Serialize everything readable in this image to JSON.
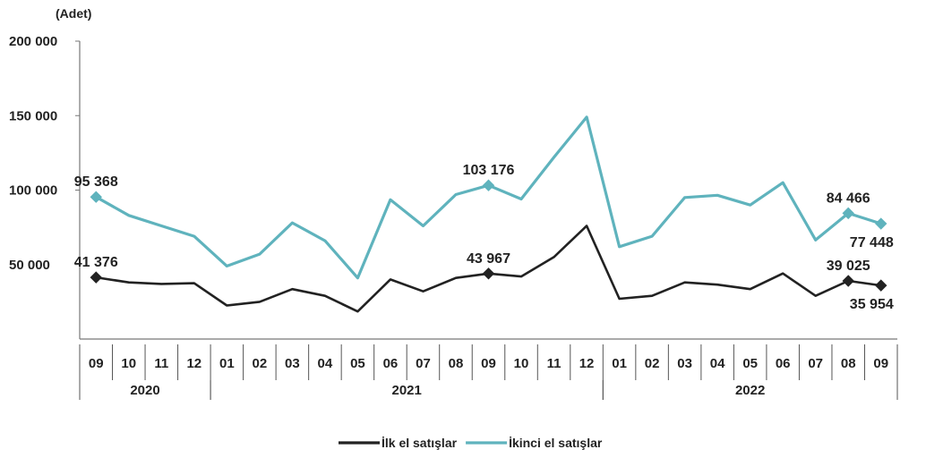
{
  "chart_data": {
    "type": "line",
    "unit_label": "(Adet)",
    "categories": [
      "09",
      "10",
      "11",
      "12",
      "01",
      "02",
      "03",
      "04",
      "05",
      "06",
      "07",
      "08",
      "09",
      "10",
      "11",
      "12",
      "01",
      "02",
      "03",
      "04",
      "05",
      "06",
      "07",
      "08",
      "09"
    ],
    "years": [
      {
        "label": "2020",
        "start": 0,
        "end": 3
      },
      {
        "label": "2021",
        "start": 4,
        "end": 15
      },
      {
        "label": "2022",
        "start": 16,
        "end": 24
      }
    ],
    "ylim": [
      0,
      200000
    ],
    "yticks": [
      {
        "value": 50000,
        "label": "50 000"
      },
      {
        "value": 100000,
        "label": "100 000"
      },
      {
        "value": 150000,
        "label": "150 000"
      },
      {
        "value": 200000,
        "label": "200 000"
      }
    ],
    "series": [
      {
        "name": "İlk el satışlar",
        "color": "#222222",
        "values": [
          41376,
          38000,
          37000,
          37500,
          22500,
          25000,
          33500,
          29000,
          18500,
          40000,
          32000,
          41000,
          43967,
          42000,
          55000,
          76000,
          27000,
          29000,
          38000,
          36500,
          33500,
          44000,
          29000,
          39025,
          35954
        ]
      },
      {
        "name": "İkinci el satışlar",
        "color": "#5fb3bd",
        "values": [
          95368,
          83000,
          76000,
          69000,
          49000,
          57000,
          78000,
          66000,
          41000,
          93500,
          76000,
          97000,
          103176,
          94000,
          122000,
          149000,
          62000,
          69000,
          95000,
          96500,
          90000,
          105000,
          66500,
          84466,
          77448
        ]
      }
    ],
    "annotations": [
      {
        "series": 1,
        "index": 0,
        "text": "95 368",
        "pos": "above"
      },
      {
        "series": 1,
        "index": 12,
        "text": "103 176",
        "pos": "above"
      },
      {
        "series": 1,
        "index": 23,
        "text": "84 466",
        "pos": "above"
      },
      {
        "series": 1,
        "index": 24,
        "text": "77 448",
        "pos": "below"
      },
      {
        "series": 0,
        "index": 0,
        "text": "41 376",
        "pos": "above"
      },
      {
        "series": 0,
        "index": 12,
        "text": "43 967",
        "pos": "above"
      },
      {
        "series": 0,
        "index": 23,
        "text": "39 025",
        "pos": "above"
      },
      {
        "series": 0,
        "index": 24,
        "text": "35 954",
        "pos": "below"
      }
    ],
    "markers": [
      {
        "series": 1,
        "index": 0
      },
      {
        "series": 1,
        "index": 12
      },
      {
        "series": 1,
        "index": 23
      },
      {
        "series": 1,
        "index": 24
      },
      {
        "series": 0,
        "index": 0
      },
      {
        "series": 0,
        "index": 12
      },
      {
        "series": 0,
        "index": 23
      },
      {
        "series": 0,
        "index": 24
      }
    ],
    "grid": false,
    "legend": "bottom-center"
  }
}
